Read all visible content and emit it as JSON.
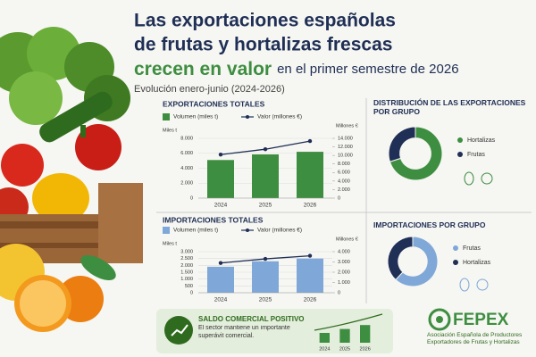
{
  "header": {
    "title_line1": "Las exportaciones españolas",
    "title_line2": "de frutas y hortalizas frescas",
    "title_highlight": "crecen en valor",
    "title_rest": "en el primer semestre de 2026",
    "subtitle": "Evolución enero-junio (2024-2026)"
  },
  "chart_data": [
    {
      "type": "bar",
      "title": "EXPORTACIONES TOTALES",
      "ylabel": "Miles t",
      "y2label": "Millones €",
      "categories": [
        "2024",
        "2025",
        "2026"
      ],
      "series": [
        {
          "name": "Volumen (miles t)",
          "color": "#3e8e41",
          "values": [
            5100,
            5850,
            6200
          ]
        },
        {
          "name": "Valor (millones €)",
          "color": "#1f2f55",
          "type": "line",
          "axis": "y2",
          "values": [
            10200,
            11450,
            13350
          ]
        }
      ],
      "ylim": [
        0,
        8000
      ],
      "yticks": [
        0,
        {
          "value": 2000,
          "label": "2.000"
        },
        {
          "value": 4000,
          "label": "4.000"
        },
        {
          "value": 6000,
          "label": "6.000"
        },
        {
          "value": 8000,
          "label": "8.000"
        }
      ],
      "y2lim": [
        0,
        14000
      ],
      "y2ticks": [
        0,
        {
          "value": 2000,
          "label": "2.000"
        },
        {
          "value": 4000,
          "label": "4.000"
        },
        {
          "value": 6000,
          "label": "6.000"
        },
        {
          "value": 8000,
          "label": "8.000"
        },
        {
          "value": 10000,
          "label": "10.000"
        },
        {
          "value": 12000,
          "label": "12.000"
        },
        {
          "value": 14000,
          "label": "14.000"
        }
      ],
      "grid": true
    },
    {
      "type": "donut",
      "title": "DISTRIBUCIÓN DE LAS EXPORTACIONES POR GRUPO",
      "categories": [
        "Hortalizas",
        "Frutas"
      ],
      "values": [
        70,
        30
      ],
      "colors": [
        "#3e8e41",
        "#1f2f55"
      ]
    },
    {
      "type": "bar",
      "title": "IMPORTACIONES TOTALES",
      "ylabel": "Miles t",
      "y2label": "Millones €",
      "categories": [
        "2024",
        "2025",
        "2026"
      ],
      "series": [
        {
          "name": "Volumen (miles t)",
          "color": "#7fa8d8",
          "values": [
            1900,
            2300,
            2500
          ]
        },
        {
          "name": "Valor (millones €)",
          "color": "#1f2f55",
          "type": "line",
          "axis": "y2",
          "values": [
            2900,
            3300,
            3600
          ]
        }
      ],
      "ylim": [
        0,
        3000
      ],
      "yticks": [
        0,
        500,
        {
          "value": 1000,
          "label": "1.000"
        },
        {
          "value": 1500,
          "label": "1.500"
        },
        {
          "value": 2000,
          "label": "2.000"
        },
        {
          "value": 2500,
          "label": "2.500"
        },
        {
          "value": 3000,
          "label": "3.000"
        }
      ],
      "y2lim": [
        0,
        4000
      ],
      "y2ticks": [
        0,
        {
          "value": 1000,
          "label": "1.000"
        },
        {
          "value": 2000,
          "label": "2.000"
        },
        {
          "value": 3000,
          "label": "3.000"
        },
        {
          "value": 4000,
          "label": "4.000"
        }
      ],
      "grid": true
    },
    {
      "type": "donut",
      "title": "IMPORTACIONES POR GRUPO",
      "categories": [
        "Frutas",
        "Hortalizas"
      ],
      "values": [
        62,
        38
      ],
      "colors": [
        "#7fa8d8",
        "#1f2f55"
      ]
    },
    {
      "type": "bar",
      "title": "SALDO COMERCIAL POSITIVO",
      "subtitle": "El sector mantiene un importante superávit comercial.",
      "categories": [
        "2024",
        "2025",
        "2026"
      ],
      "values": [
        5,
        7,
        9
      ],
      "ylim": [
        0,
        10
      ],
      "color": "#3e8e41"
    }
  ],
  "footer": {
    "logo": "FEPEX",
    "org": "Asociación Española de Productores Exportadores de Frutas y Hortalizas"
  }
}
